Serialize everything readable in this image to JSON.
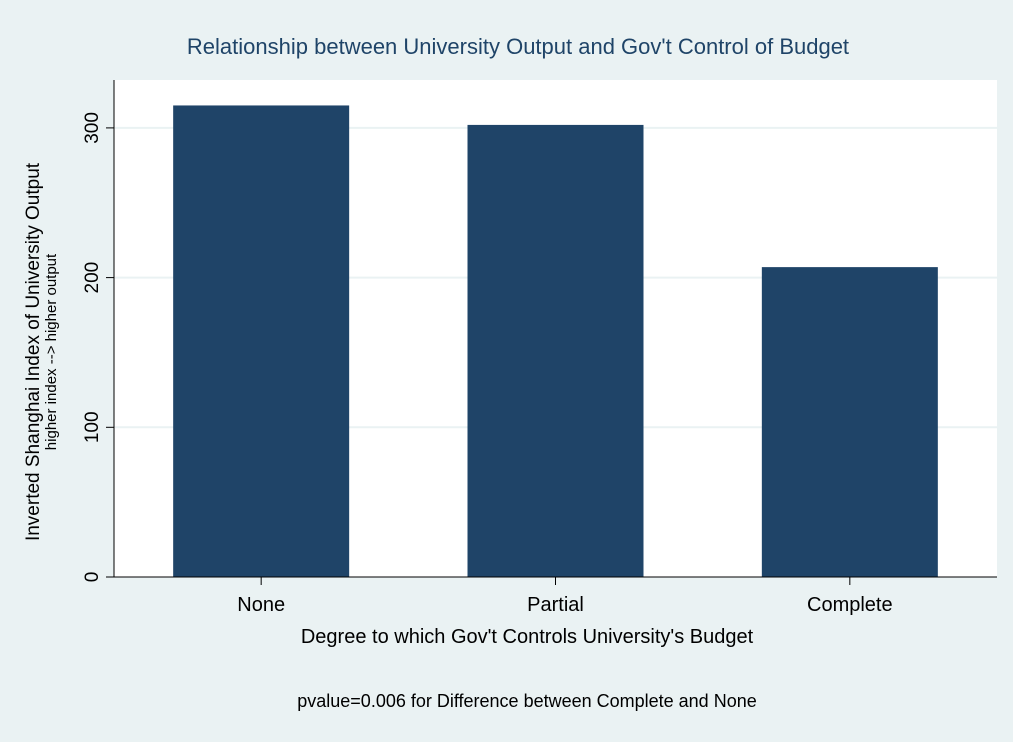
{
  "chart_data": {
    "type": "bar",
    "title": "Relationship between University Output and Gov't Control of Budget",
    "ylabel": "Inverted Shanghai Index of University Output",
    "ylabel_sub": "higher index --> higher output",
    "xlabel": "Degree to which Gov't Controls University's Budget",
    "note": "pvalue=0.006 for Difference between Complete and None",
    "categories": [
      "None",
      "Partial",
      "Complete"
    ],
    "values": [
      315,
      302,
      207
    ],
    "ylim": [
      0,
      332
    ],
    "yticks": [
      0,
      100,
      200,
      300
    ],
    "grid": true,
    "bar_color": "#1f4468",
    "title_color": "#1f4468",
    "outer_background": "#eaf2f3",
    "plot_background": "#ffffff",
    "grid_color": "#eaf2f3"
  }
}
